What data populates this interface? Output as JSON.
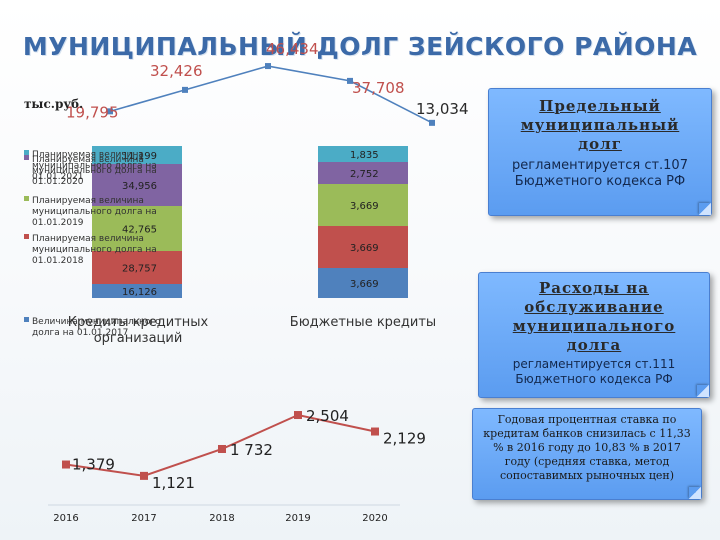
{
  "title": "МУНИЦИПАЛЬНЫЙ ДОЛГ ЗЕЙСКОГО РАЙОНА",
  "chart_data": [
    {
      "type": "line",
      "ylabel": "тыс.руб.",
      "values": [
        19.795,
        32.426,
        46.434,
        37.708,
        13.034
      ],
      "labels": [
        "19,795",
        "32,426",
        "46,434",
        "37,708",
        "13,034"
      ],
      "color": "#4f81bd"
    },
    {
      "type": "bar",
      "stacked": true,
      "categories": [
        "Кредиты кредитных организаций",
        "Бюджетные кредиты"
      ],
      "series": [
        {
          "name": "Величина муниципального долга на 01.01.2017",
          "color": "#4f81bd",
          "values": [
            16.126,
            3.669
          ],
          "labels": [
            "16,126",
            "3,669"
          ]
        },
        {
          "name": "Планируемая величина муниципального долга на 01.01.2018",
          "color": "#c0504d",
          "values": [
            28.757,
            3.669
          ],
          "labels": [
            "28,757",
            "3,669"
          ]
        },
        {
          "name": "Планируемая величина муниципального долга на 01.01.2019",
          "color": "#9bbb59",
          "values": [
            42.765,
            3.669
          ],
          "labels": [
            "42,765",
            "3,669"
          ]
        },
        {
          "name": "Планируемая величина муниципального долга на 01.01.2020",
          "color": "#8064a2",
          "values": [
            34.956,
            2.752
          ],
          "labels": [
            "34,956",
            "2,752"
          ]
        },
        {
          "name": "Планируемая величина муниципального долга на 01.01.2021",
          "color": "#4bacc6",
          "values": [
            11.199,
            1.835
          ],
          "labels": [
            "11,199",
            "1,835"
          ]
        }
      ]
    },
    {
      "type": "line",
      "categories": [
        "2016",
        "2017",
        "2018",
        "2019",
        "2020"
      ],
      "values": [
        1.379,
        1.121,
        1.732,
        2.504,
        2.129
      ],
      "labels": [
        "1,379",
        "1,121",
        "1 732",
        "2,504",
        "2,129"
      ],
      "color": "#c0504d"
    }
  ],
  "callouts": {
    "limit": {
      "heading": "Предельный муниципальный долг",
      "body": "регламентируется ст.107 Бюджетного кодекса РФ"
    },
    "expenses": {
      "heading": "Расходы на обслуживание муниципального долга",
      "body": "регламентируется ст.111 Бюджетного кодекса РФ"
    },
    "rate": {
      "body": "Годовая процентная ставка по кредитам банков снизилась с 11,33 % в 2016 году до 10,83 % в 2017 году (средняя ставка, метод сопоставимых рыночных цен)"
    }
  }
}
